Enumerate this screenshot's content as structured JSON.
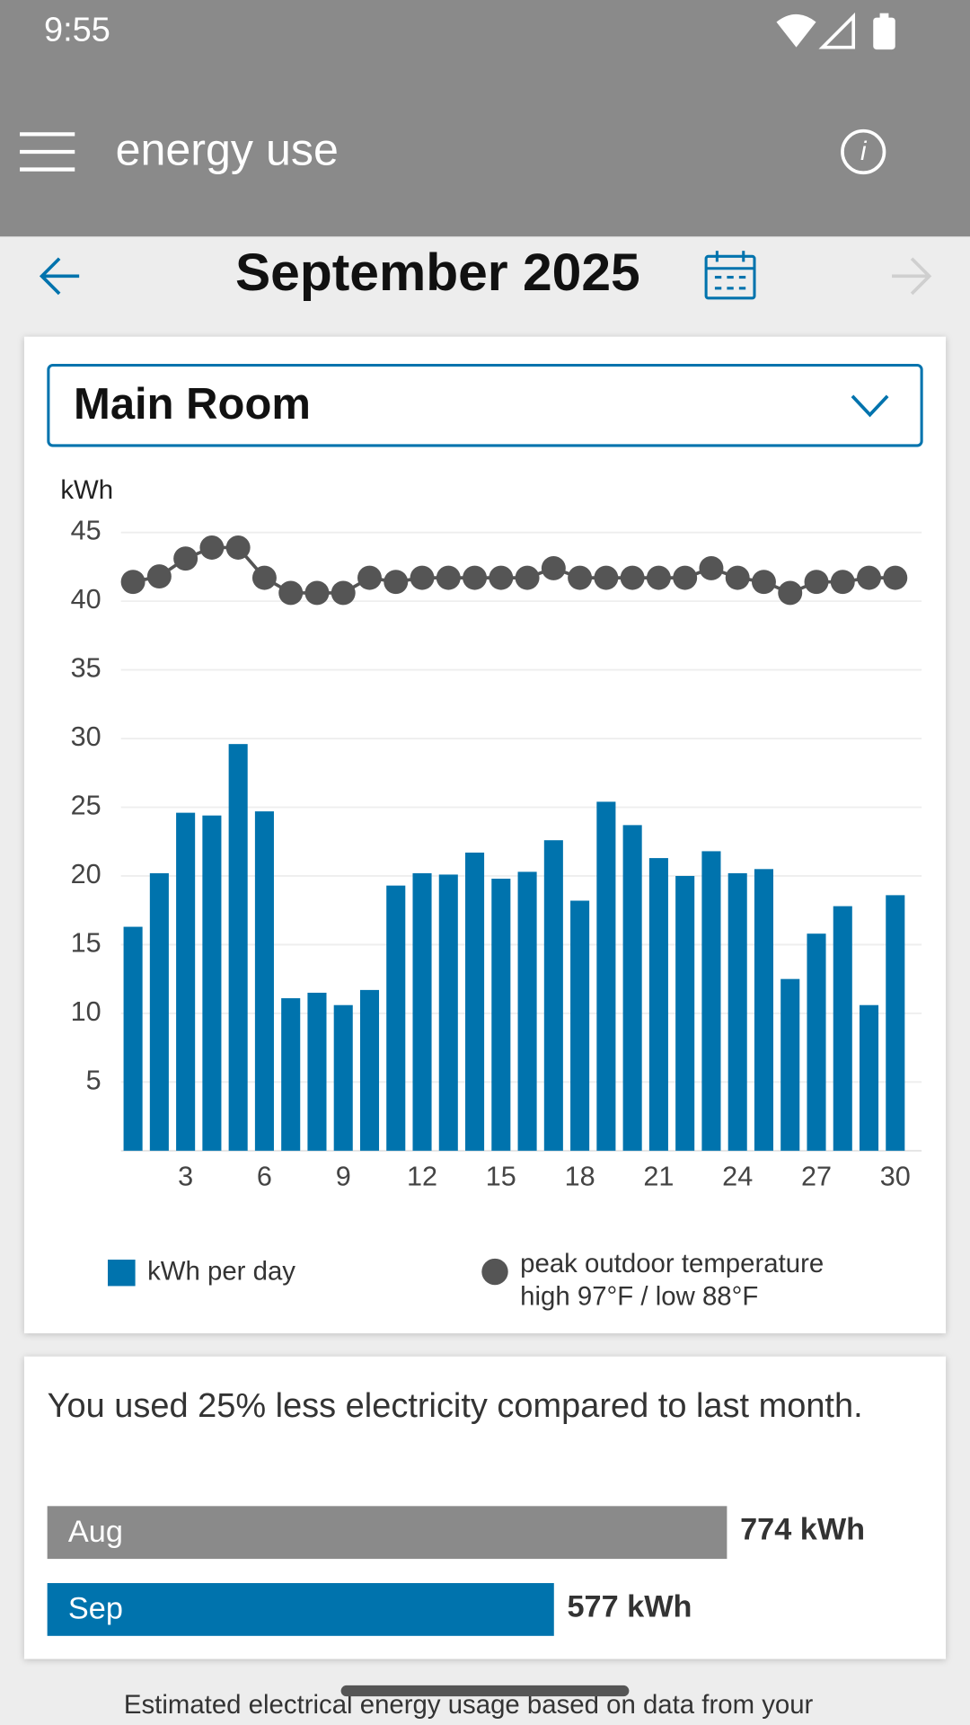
{
  "status_bar": {
    "time": "9:55"
  },
  "app_bar": {
    "title": "energy use"
  },
  "header": {
    "month": "September 2025"
  },
  "dropdown": {
    "selected": "Main Room"
  },
  "chart_data": [
    {
      "type": "combo",
      "y_label": "kWh",
      "x": [
        1,
        2,
        3,
        4,
        5,
        6,
        7,
        8,
        9,
        10,
        11,
        12,
        13,
        14,
        15,
        16,
        17,
        18,
        19,
        20,
        21,
        22,
        23,
        24,
        25,
        26,
        27,
        28,
        29,
        30
      ],
      "series": [
        {
          "name": "kWh per day",
          "type": "bar",
          "color": "#0073ad",
          "values": [
            16.3,
            20.2,
            24.6,
            24.4,
            29.6,
            24.7,
            11.1,
            11.5,
            10.6,
            11.7,
            19.3,
            20.2,
            20.1,
            21.7,
            19.8,
            20.3,
            22.6,
            18.2,
            25.4,
            23.7,
            21.3,
            20.0,
            21.8,
            20.2,
            20.5,
            12.5,
            15.8,
            17.8,
            10.6,
            18.6
          ]
        },
        {
          "name": "peak outdoor temperature",
          "type": "line",
          "color": "#555555",
          "values": [
            41.4,
            41.8,
            43.1,
            43.9,
            43.9,
            41.7,
            40.6,
            40.6,
            40.6,
            41.7,
            41.4,
            41.7,
            41.7,
            41.7,
            41.7,
            41.7,
            42.4,
            41.7,
            41.7,
            41.7,
            41.7,
            41.7,
            42.4,
            41.7,
            41.4,
            40.6,
            41.4,
            41.4,
            41.7,
            41.7
          ]
        }
      ],
      "legend_note": "high 97°F / low 88°F",
      "xlim": [
        0.5,
        30.5
      ],
      "xticks": [
        3,
        6,
        9,
        12,
        15,
        18,
        21,
        24,
        27,
        30
      ],
      "ylim": [
        0,
        45
      ],
      "yticks": [
        5,
        10,
        15,
        20,
        25,
        30,
        35,
        40,
        45
      ],
      "grid": true
    },
    {
      "type": "hbar",
      "title": "You used 25% less electricity compared to last month.",
      "categories": [
        "Aug",
        "Sep"
      ],
      "values": [
        774,
        577
      ],
      "value_labels": [
        "774 kWh",
        "577 kWh"
      ],
      "colors": [
        "#8a8a8a",
        "#0073ad"
      ]
    }
  ],
  "footer": {
    "text": "Estimated electrical energy usage based on data from your"
  }
}
